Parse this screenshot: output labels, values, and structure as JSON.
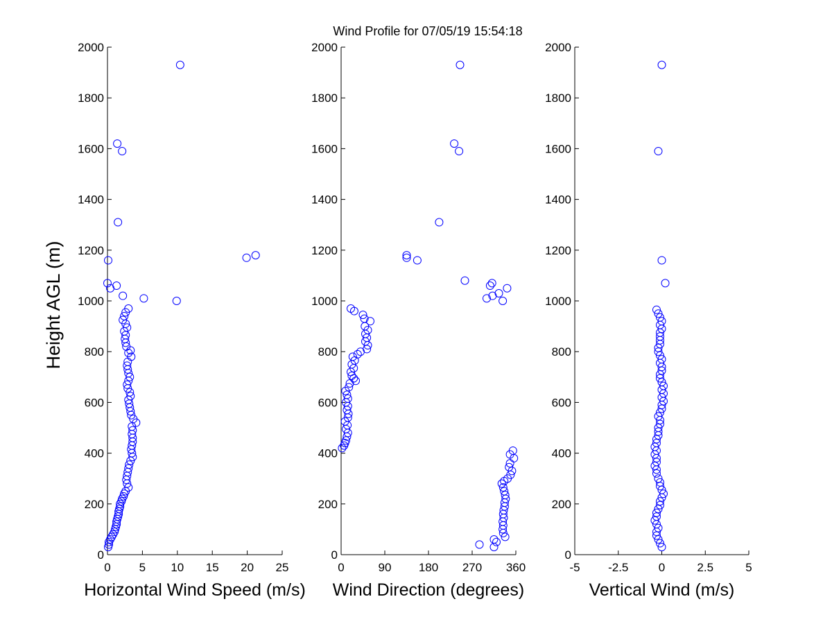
{
  "chart_data": {
    "type": "scatter",
    "title": "Wind Profile for  07/05/19 15:54:18",
    "ylabel": "Height AGL (m)",
    "marker_color": "#0000ff",
    "panels": [
      {
        "xlabel": "Horizontal Wind Speed (m/s)",
        "xlim": [
          0,
          25
        ],
        "ylim": [
          0,
          2000
        ],
        "xticks": [
          0,
          5,
          10,
          15,
          20,
          25
        ],
        "xtick_labels": [
          "0",
          "5",
          "10",
          "15",
          "20",
          "25"
        ],
        "yticks": [
          0,
          200,
          400,
          600,
          800,
          1000,
          1200,
          1400,
          1600,
          1800,
          2000
        ],
        "points": [
          [
            0.1,
            30
          ],
          [
            0.2,
            40
          ],
          [
            0.2,
            50
          ],
          [
            0.4,
            60
          ],
          [
            0.6,
            70
          ],
          [
            0.8,
            80
          ],
          [
            1.0,
            90
          ],
          [
            1.1,
            100
          ],
          [
            1.2,
            110
          ],
          [
            1.3,
            120
          ],
          [
            1.3,
            130
          ],
          [
            1.4,
            140
          ],
          [
            1.5,
            150
          ],
          [
            1.6,
            160
          ],
          [
            1.6,
            170
          ],
          [
            1.7,
            180
          ],
          [
            1.8,
            190
          ],
          [
            1.8,
            200
          ],
          [
            2.0,
            210
          ],
          [
            2.1,
            220
          ],
          [
            2.3,
            230
          ],
          [
            2.4,
            240
          ],
          [
            2.6,
            250
          ],
          [
            3.0,
            265
          ],
          [
            2.8,
            280
          ],
          [
            2.7,
            295
          ],
          [
            2.8,
            310
          ],
          [
            2.9,
            325
          ],
          [
            3.0,
            340
          ],
          [
            3.1,
            355
          ],
          [
            3.3,
            370
          ],
          [
            3.6,
            385
          ],
          [
            3.5,
            400
          ],
          [
            3.4,
            415
          ],
          [
            3.5,
            430
          ],
          [
            3.6,
            445
          ],
          [
            3.6,
            460
          ],
          [
            3.5,
            475
          ],
          [
            3.6,
            490
          ],
          [
            3.5,
            505
          ],
          [
            4.1,
            520
          ],
          [
            3.7,
            535
          ],
          [
            3.4,
            550
          ],
          [
            3.3,
            565
          ],
          [
            3.2,
            580
          ],
          [
            3.1,
            595
          ],
          [
            3.0,
            610
          ],
          [
            3.3,
            625
          ],
          [
            3.2,
            640
          ],
          [
            2.9,
            655
          ],
          [
            2.8,
            670
          ],
          [
            3.0,
            685
          ],
          [
            3.2,
            700
          ],
          [
            3.0,
            715
          ],
          [
            2.9,
            730
          ],
          [
            2.8,
            745
          ],
          [
            2.9,
            760
          ],
          [
            3.4,
            780
          ],
          [
            3.0,
            795
          ],
          [
            3.3,
            805
          ],
          [
            2.7,
            820
          ],
          [
            2.6,
            835
          ],
          [
            2.5,
            850
          ],
          [
            2.6,
            865
          ],
          [
            2.4,
            880
          ],
          [
            2.8,
            895
          ],
          [
            2.6,
            910
          ],
          [
            2.2,
            925
          ],
          [
            2.4,
            940
          ],
          [
            2.6,
            955
          ],
          [
            3.0,
            970
          ],
          [
            9.9,
            1000
          ],
          [
            5.2,
            1010
          ],
          [
            2.2,
            1020
          ],
          [
            0.4,
            1050
          ],
          [
            1.3,
            1060
          ],
          [
            0.0,
            1070
          ],
          [
            0.1,
            1160
          ],
          [
            19.9,
            1170
          ],
          [
            21.2,
            1180
          ],
          [
            1.5,
            1310
          ],
          [
            2.1,
            1590
          ],
          [
            1.4,
            1620
          ],
          [
            10.4,
            1930
          ]
        ]
      },
      {
        "xlabel": "Wind Direction (degrees)",
        "xlim": [
          0,
          360
        ],
        "ylim": [
          0,
          2000
        ],
        "xticks": [
          0,
          90,
          180,
          270,
          360
        ],
        "xtick_labels": [
          "0",
          "90",
          "180",
          "270",
          "360"
        ],
        "yticks": [
          0,
          200,
          400,
          600,
          800,
          1000,
          1200,
          1400,
          1600,
          1800,
          2000
        ],
        "points": [
          [
            315,
            30
          ],
          [
            285,
            40
          ],
          [
            320,
            50
          ],
          [
            315,
            60
          ],
          [
            338,
            70
          ],
          [
            334,
            85
          ],
          [
            333,
            100
          ],
          [
            334,
            115
          ],
          [
            333,
            130
          ],
          [
            335,
            145
          ],
          [
            334,
            160
          ],
          [
            335,
            175
          ],
          [
            337,
            190
          ],
          [
            337,
            205
          ],
          [
            339,
            220
          ],
          [
            338,
            235
          ],
          [
            336,
            250
          ],
          [
            334,
            265
          ],
          [
            331,
            280
          ],
          [
            336,
            290
          ],
          [
            343,
            300
          ],
          [
            349,
            315
          ],
          [
            352,
            330
          ],
          [
            346,
            345
          ],
          [
            348,
            360
          ],
          [
            356,
            380
          ],
          [
            348,
            395
          ],
          [
            354,
            410
          ],
          [
            2,
            420
          ],
          [
            6,
            430
          ],
          [
            8,
            440
          ],
          [
            10,
            450
          ],
          [
            12,
            465
          ],
          [
            14,
            480
          ],
          [
            10,
            495
          ],
          [
            13,
            510
          ],
          [
            8,
            525
          ],
          [
            14,
            540
          ],
          [
            15,
            555
          ],
          [
            12,
            570
          ],
          [
            14,
            585
          ],
          [
            10,
            600
          ],
          [
            14,
            615
          ],
          [
            12,
            630
          ],
          [
            9,
            645
          ],
          [
            16,
            660
          ],
          [
            18,
            675
          ],
          [
            30,
            685
          ],
          [
            26,
            695
          ],
          [
            22,
            705
          ],
          [
            20,
            720
          ],
          [
            26,
            735
          ],
          [
            22,
            750
          ],
          [
            28,
            765
          ],
          [
            24,
            780
          ],
          [
            34,
            790
          ],
          [
            40,
            800
          ],
          [
            53,
            810
          ],
          [
            55,
            825
          ],
          [
            50,
            840
          ],
          [
            53,
            855
          ],
          [
            50,
            870
          ],
          [
            55,
            885
          ],
          [
            49,
            900
          ],
          [
            60,
            920
          ],
          [
            48,
            930
          ],
          [
            45,
            945
          ],
          [
            27,
            960
          ],
          [
            20,
            970
          ],
          [
            333,
            1000
          ],
          [
            300,
            1010
          ],
          [
            312,
            1020
          ],
          [
            325,
            1030
          ],
          [
            342,
            1050
          ],
          [
            307,
            1060
          ],
          [
            311,
            1070
          ],
          [
            255,
            1080
          ],
          [
            157,
            1160
          ],
          [
            135,
            1170
          ],
          [
            135,
            1180
          ],
          [
            202,
            1310
          ],
          [
            243,
            1590
          ],
          [
            233,
            1620
          ],
          [
            245,
            1930
          ]
        ]
      },
      {
        "xlabel": "Vertical Wind (m/s)",
        "xlim": [
          -5,
          5
        ],
        "ylim": [
          0,
          2000
        ],
        "xticks": [
          -5,
          -2.5,
          0,
          2.5,
          5
        ],
        "xtick_labels": [
          "-5",
          "-2.5",
          "0",
          "2.5",
          "5"
        ],
        "yticks": [
          0,
          200,
          400,
          600,
          800,
          1000,
          1200,
          1400,
          1600,
          1800,
          2000
        ],
        "points": [
          [
            0.0,
            30
          ],
          [
            -0.1,
            45
          ],
          [
            -0.2,
            60
          ],
          [
            -0.3,
            75
          ],
          [
            -0.3,
            90
          ],
          [
            -0.2,
            105
          ],
          [
            -0.3,
            120
          ],
          [
            -0.4,
            135
          ],
          [
            -0.3,
            150
          ],
          [
            -0.3,
            165
          ],
          [
            -0.2,
            180
          ],
          [
            -0.1,
            195
          ],
          [
            -0.1,
            210
          ],
          [
            0.0,
            225
          ],
          [
            0.1,
            240
          ],
          [
            0.0,
            255
          ],
          [
            -0.1,
            270
          ],
          [
            -0.1,
            285
          ],
          [
            -0.2,
            300
          ],
          [
            -0.3,
            320
          ],
          [
            -0.3,
            335
          ],
          [
            -0.4,
            350
          ],
          [
            -0.3,
            365
          ],
          [
            -0.3,
            380
          ],
          [
            -0.4,
            395
          ],
          [
            -0.3,
            410
          ],
          [
            -0.4,
            425
          ],
          [
            -0.3,
            440
          ],
          [
            -0.3,
            455
          ],
          [
            -0.2,
            470
          ],
          [
            -0.2,
            485
          ],
          [
            -0.2,
            500
          ],
          [
            -0.1,
            515
          ],
          [
            -0.1,
            530
          ],
          [
            -0.2,
            545
          ],
          [
            -0.1,
            560
          ],
          [
            0.0,
            575
          ],
          [
            0.0,
            590
          ],
          [
            0.1,
            605
          ],
          [
            0.0,
            620
          ],
          [
            0.1,
            635
          ],
          [
            0.0,
            650
          ],
          [
            0.1,
            665
          ],
          [
            0.0,
            680
          ],
          [
            -0.1,
            695
          ],
          [
            -0.1,
            710
          ],
          [
            0.0,
            725
          ],
          [
            0.0,
            740
          ],
          [
            -0.1,
            755
          ],
          [
            0.0,
            770
          ],
          [
            -0.1,
            785
          ],
          [
            -0.2,
            800
          ],
          [
            -0.2,
            815
          ],
          [
            -0.1,
            830
          ],
          [
            -0.1,
            845
          ],
          [
            -0.1,
            860
          ],
          [
            -0.1,
            875
          ],
          [
            0.0,
            890
          ],
          [
            -0.1,
            905
          ],
          [
            0.0,
            920
          ],
          [
            -0.1,
            935
          ],
          [
            -0.2,
            950
          ],
          [
            -0.3,
            965
          ],
          [
            0.2,
            1070
          ],
          [
            0.0,
            1160
          ],
          [
            -0.2,
            1590
          ],
          [
            0.0,
            1930
          ]
        ]
      }
    ]
  }
}
